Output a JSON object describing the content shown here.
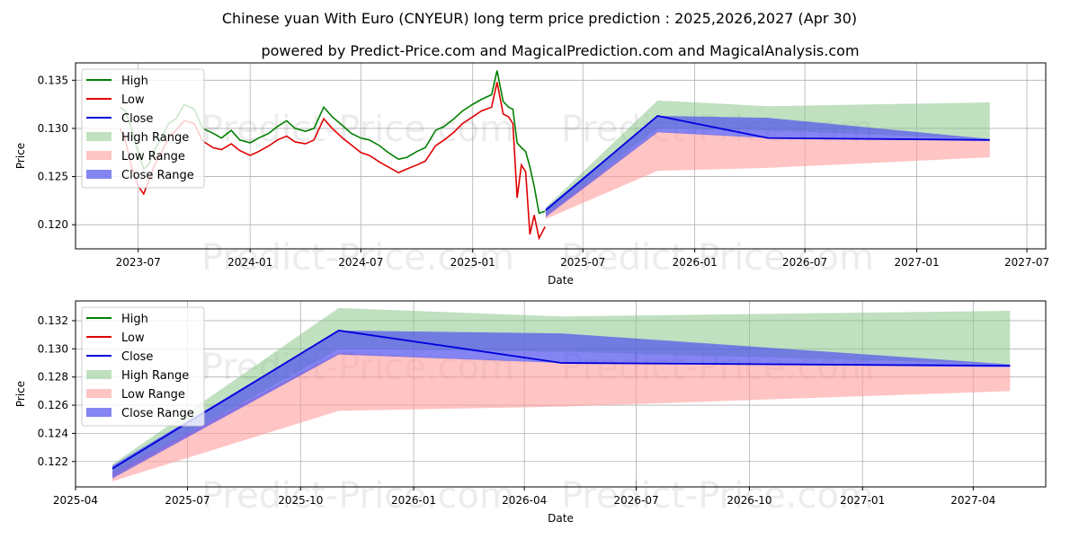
{
  "title": "Chinese yuan With Euro (CNYEUR) long term price prediction : 2025,2026,2027 (Apr 30)",
  "subtitle": "powered by Predict-Price.com and MagicalPrediction.com and MagicalAnalysis.com",
  "watermark": "Predict-Price.com",
  "colors": {
    "high": "#008000",
    "low": "#e00000",
    "close": "#0000dd",
    "high_range": "#8cc78c",
    "low_range": "#ff9d9d",
    "close_range": "#5050ee"
  },
  "chart_data": [
    {
      "type": "line",
      "xlabel": "Date",
      "ylabel": "Price",
      "xlim": [
        "2023-03-20",
        "2027-08-01"
      ],
      "ylim": [
        0.1175,
        0.1368
      ],
      "x_ticks": [
        "2023-07",
        "2024-01",
        "2024-07",
        "2025-01",
        "2025-07",
        "2026-01",
        "2026-07",
        "2027-01",
        "2027-07"
      ],
      "y_ticks": [
        0.12,
        0.125,
        0.13,
        0.135
      ],
      "grid": true,
      "legend_position": "top-left",
      "legend": [
        "High",
        "Low",
        "Close",
        "High Range",
        "Low Range",
        "Close Range"
      ],
      "history": {
        "dates": [
          "2023-06-01",
          "2023-06-10",
          "2023-06-20",
          "2023-07-01",
          "2023-07-10",
          "2023-07-18",
          "2023-07-28",
          "2023-08-08",
          "2023-08-20",
          "2023-09-01",
          "2023-09-15",
          "2023-10-01",
          "2023-10-15",
          "2023-11-01",
          "2023-11-15",
          "2023-12-01",
          "2023-12-15",
          "2024-01-01",
          "2024-01-15",
          "2024-02-01",
          "2024-02-15",
          "2024-03-01",
          "2024-03-15",
          "2024-04-01",
          "2024-04-15",
          "2024-05-01",
          "2024-05-15",
          "2024-06-01",
          "2024-06-15",
          "2024-07-01",
          "2024-07-15",
          "2024-08-01",
          "2024-08-15",
          "2024-09-01",
          "2024-09-15",
          "2024-10-01",
          "2024-10-15",
          "2024-11-01",
          "2024-11-15",
          "2024-12-01",
          "2024-12-15",
          "2025-01-01",
          "2025-01-15",
          "2025-02-01",
          "2025-02-10",
          "2025-02-20",
          "2025-03-01",
          "2025-03-08",
          "2025-03-15",
          "2025-03-22",
          "2025-03-29",
          "2025-04-05",
          "2025-04-12",
          "2025-04-20",
          "2025-04-30"
        ],
        "high": [
          0.1322,
          0.1318,
          0.13,
          0.1275,
          0.1258,
          0.1262,
          0.1278,
          0.129,
          0.1305,
          0.131,
          0.1325,
          0.132,
          0.13,
          0.1295,
          0.129,
          0.1298,
          0.1288,
          0.1285,
          0.129,
          0.1295,
          0.1302,
          0.1308,
          0.13,
          0.1297,
          0.13,
          0.1322,
          0.1312,
          0.1303,
          0.1295,
          0.129,
          0.1288,
          0.1282,
          0.1275,
          0.1268,
          0.127,
          0.1276,
          0.128,
          0.1298,
          0.1302,
          0.131,
          0.1318,
          0.1325,
          0.133,
          0.1335,
          0.136,
          0.1328,
          0.1322,
          0.132,
          0.1285,
          0.128,
          0.1276,
          0.126,
          0.124,
          0.1212,
          0.1214
        ],
        "low": [
          0.13,
          0.1288,
          0.126,
          0.124,
          0.1232,
          0.1245,
          0.1262,
          0.1275,
          0.129,
          0.1298,
          0.1308,
          0.1305,
          0.1287,
          0.128,
          0.1278,
          0.1284,
          0.1277,
          0.1272,
          0.1276,
          0.1282,
          0.1288,
          0.1292,
          0.1286,
          0.1284,
          0.1288,
          0.131,
          0.13,
          0.129,
          0.1283,
          0.1275,
          0.1272,
          0.1265,
          0.126,
          0.1254,
          0.1258,
          0.1262,
          0.1266,
          0.1282,
          0.1288,
          0.1296,
          0.1305,
          0.1312,
          0.1318,
          0.1322,
          0.1348,
          0.1315,
          0.1312,
          0.1305,
          0.1228,
          0.1262,
          0.1255,
          0.119,
          0.121,
          0.1186,
          0.1198
        ]
      },
      "forecast": {
        "dates": [
          "2025-05-01",
          "2025-11-01",
          "2026-05-01",
          "2027-05-01"
        ],
        "close": [
          0.1215,
          0.1313,
          0.129,
          0.1288
        ],
        "high_range_upper": [
          0.1218,
          0.1329,
          0.1323,
          0.1327
        ],
        "high_range_lower": [
          0.121,
          0.13,
          0.1298,
          0.1289
        ],
        "low_range_upper": [
          0.1212,
          0.1297,
          0.129,
          0.1287
        ],
        "low_range_lower": [
          0.1206,
          0.1256,
          0.1259,
          0.127
        ],
        "close_range_upper": [
          0.1217,
          0.1313,
          0.1311,
          0.1289
        ],
        "close_range_lower": [
          0.1208,
          0.1296,
          0.129,
          0.1287
        ]
      }
    },
    {
      "type": "line",
      "xlabel": "Date",
      "ylabel": "Price",
      "xlim": [
        "2025-04-01",
        "2027-05-30"
      ],
      "ylim": [
        0.1202,
        0.1334
      ],
      "x_ticks": [
        "2025-04",
        "2025-07",
        "2025-10",
        "2026-01",
        "2026-04",
        "2026-07",
        "2026-10",
        "2027-01",
        "2027-04"
      ],
      "y_ticks": [
        0.122,
        0.124,
        0.126,
        0.128,
        0.13,
        0.132
      ],
      "grid": true,
      "legend_position": "top-left",
      "legend": [
        "High",
        "Low",
        "Close",
        "High Range",
        "Low Range",
        "Close Range"
      ],
      "forecast": {
        "dates": [
          "2025-05-01",
          "2025-11-01",
          "2026-05-01",
          "2027-05-01"
        ],
        "close": [
          0.1215,
          0.1313,
          0.129,
          0.1288
        ],
        "high_range_upper": [
          0.1218,
          0.1329,
          0.1323,
          0.1327
        ],
        "high_range_lower": [
          0.121,
          0.13,
          0.1298,
          0.1289
        ],
        "low_range_upper": [
          0.1212,
          0.1297,
          0.129,
          0.1287
        ],
        "low_range_lower": [
          0.1206,
          0.1256,
          0.1259,
          0.127
        ],
        "close_range_upper": [
          0.1217,
          0.1313,
          0.1311,
          0.1289
        ],
        "close_range_lower": [
          0.1208,
          0.1296,
          0.129,
          0.1287
        ]
      }
    }
  ]
}
